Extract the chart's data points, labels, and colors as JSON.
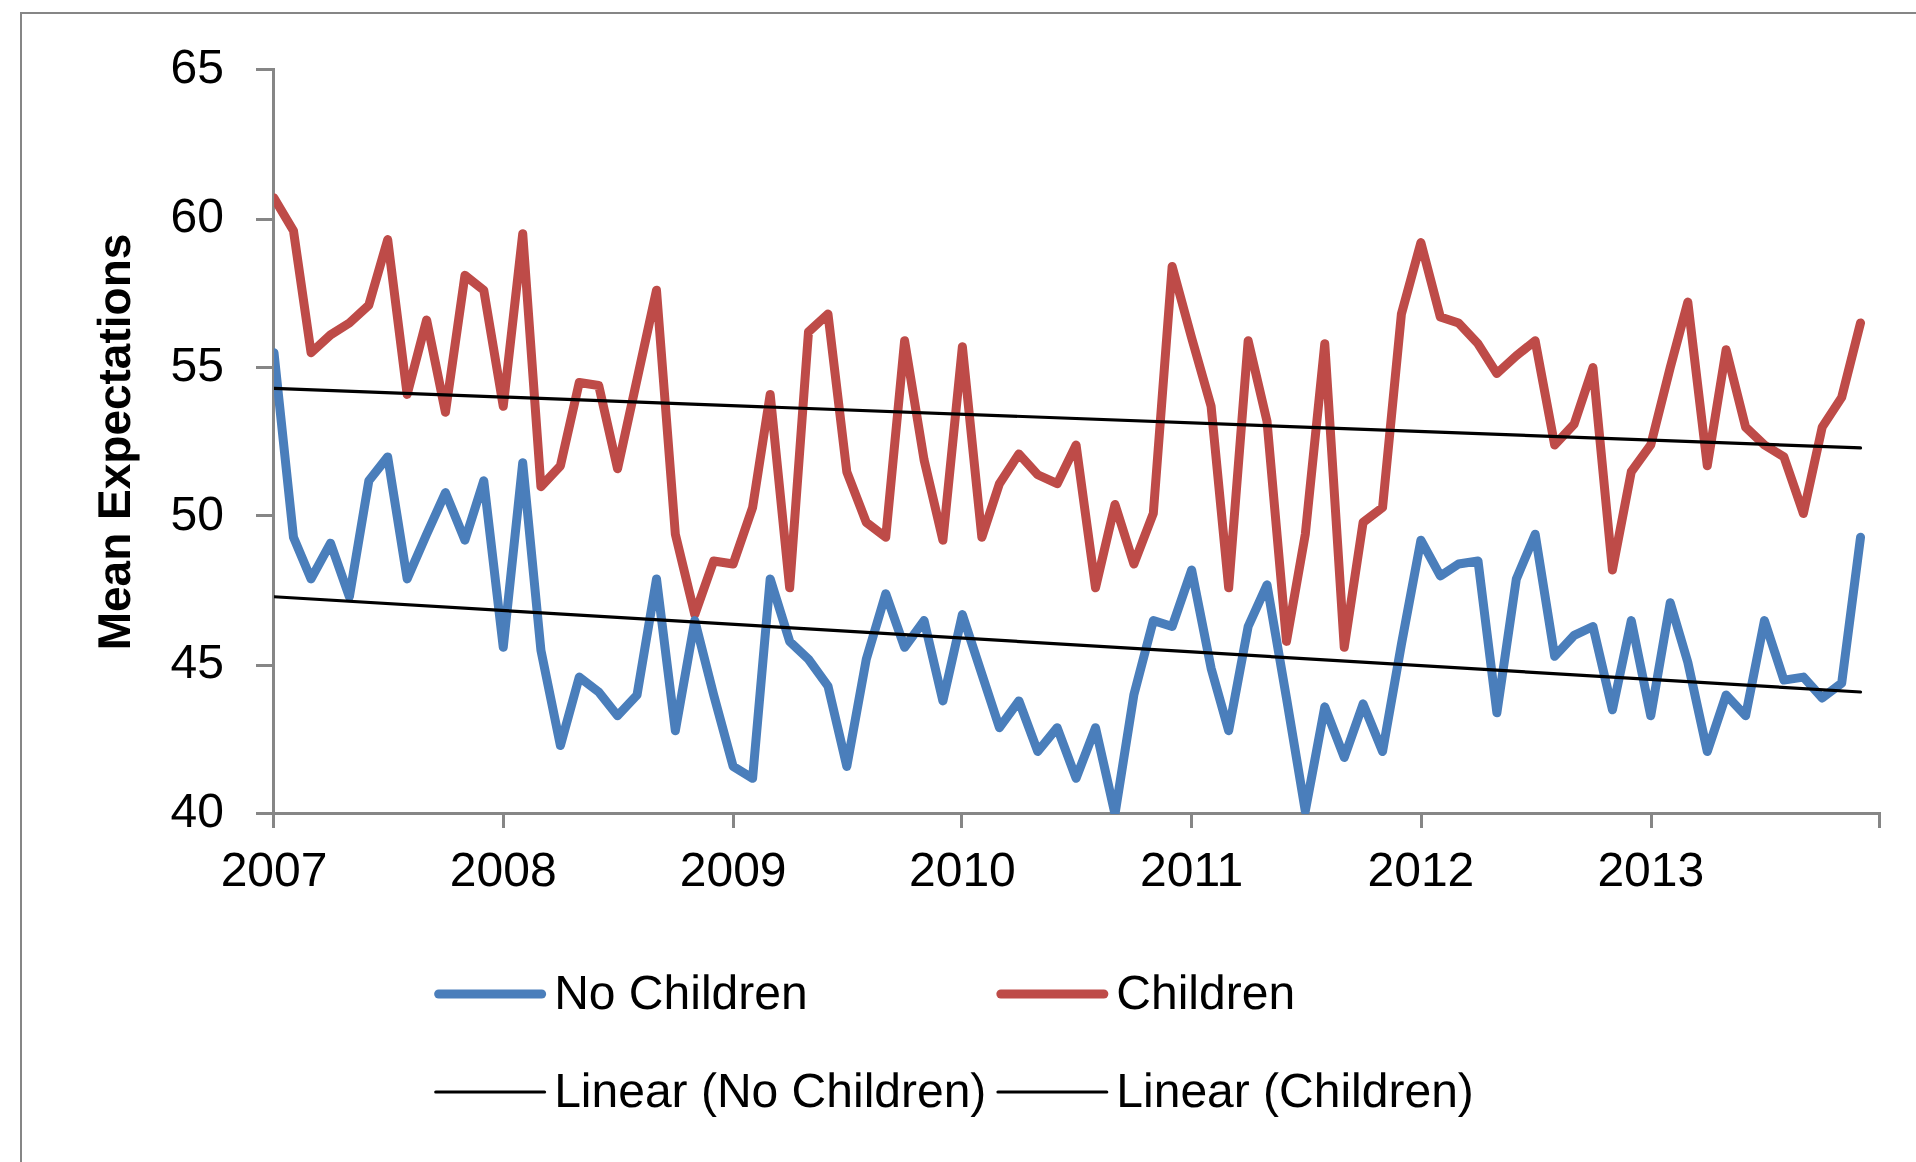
{
  "chart_data": {
    "type": "line",
    "ylabel": "Mean Expectations",
    "x": [
      "2007-01",
      "2007-02",
      "2007-03",
      "2007-04",
      "2007-05",
      "2007-06",
      "2007-07",
      "2007-08",
      "2007-09",
      "2007-10",
      "2007-11",
      "2007-12",
      "2008-01",
      "2008-02",
      "2008-03",
      "2008-04",
      "2008-05",
      "2008-06",
      "2008-07",
      "2008-08",
      "2008-09",
      "2008-10",
      "2008-11",
      "2008-12",
      "2009-01",
      "2009-02",
      "2009-03",
      "2009-04",
      "2009-05",
      "2009-06",
      "2009-07",
      "2009-08",
      "2009-09",
      "2009-10",
      "2009-11",
      "2009-12",
      "2010-01",
      "2010-02",
      "2010-03",
      "2010-04",
      "2010-05",
      "2010-06",
      "2010-07",
      "2010-08",
      "2010-09",
      "2010-10",
      "2010-11",
      "2010-12",
      "2011-01",
      "2011-02",
      "2011-03",
      "2011-04",
      "2011-05",
      "2011-06",
      "2011-07",
      "2011-08",
      "2011-09",
      "2011-10",
      "2011-11",
      "2011-12",
      "2012-01",
      "2012-02",
      "2012-03",
      "2012-04",
      "2012-05",
      "2012-06",
      "2012-07",
      "2012-08",
      "2012-09",
      "2012-10",
      "2012-11",
      "2012-12",
      "2013-01",
      "2013-02",
      "2013-03",
      "2013-04",
      "2013-05",
      "2013-06",
      "2013-07",
      "2013-08",
      "2013-09",
      "2013-10",
      "2013-11",
      "2013-12"
    ],
    "series": [
      {
        "name": "No Children",
        "color": "#4a7ebb",
        "values": [
          55.5,
          49.3,
          47.9,
          49.1,
          47.3,
          51.2,
          52.0,
          47.9,
          49.4,
          50.8,
          49.2,
          51.2,
          45.6,
          51.8,
          45.5,
          42.3,
          44.6,
          44.1,
          43.3,
          44.0,
          47.9,
          42.8,
          46.5,
          44.0,
          41.6,
          41.2,
          47.9,
          45.8,
          45.2,
          44.3,
          41.6,
          45.2,
          47.4,
          45.6,
          46.5,
          43.8,
          46.7,
          44.7,
          42.9,
          43.8,
          42.1,
          42.9,
          41.2,
          42.9,
          40.0,
          44.0,
          46.5,
          46.3,
          48.2,
          44.9,
          42.8,
          46.3,
          47.7,
          43.9,
          40.1,
          43.6,
          41.9,
          43.7,
          42.1,
          45.7,
          49.2,
          48.0,
          48.4,
          48.5,
          43.4,
          47.9,
          49.4,
          45.3,
          46.0,
          46.3,
          43.5,
          46.5,
          43.3,
          47.1,
          45.1,
          42.1,
          44.0,
          43.3,
          46.5,
          44.5,
          44.6,
          43.9,
          44.4,
          49.3
        ]
      },
      {
        "name": "Children",
        "color": "#be4b48",
        "values": [
          60.7,
          59.6,
          55.5,
          56.1,
          56.5,
          57.1,
          59.3,
          54.1,
          56.6,
          53.5,
          58.1,
          57.6,
          53.7,
          59.5,
          51.0,
          51.7,
          54.5,
          54.4,
          51.6,
          54.6,
          57.6,
          49.4,
          46.7,
          48.5,
          48.4,
          50.3,
          54.1,
          47.6,
          56.2,
          56.8,
          51.5,
          49.8,
          49.3,
          55.9,
          51.9,
          49.2,
          55.7,
          49.3,
          51.1,
          52.1,
          51.4,
          51.1,
          52.4,
          47.6,
          50.4,
          48.4,
          50.1,
          58.4,
          56.0,
          53.7,
          47.6,
          55.9,
          53.2,
          45.8,
          49.4,
          55.8,
          45.6,
          49.8,
          50.3,
          56.8,
          59.2,
          56.7,
          56.5,
          55.8,
          54.8,
          55.4,
          55.9,
          52.4,
          53.1,
          55.0,
          48.2,
          51.5,
          52.4,
          55.0,
          57.2,
          51.7,
          55.6,
          53.0,
          52.4,
          52.0,
          50.1,
          53.0,
          54.0,
          56.5
        ]
      },
      {
        "name": "Linear (No Children)",
        "color": "#000000",
        "x": [
          "2007-01",
          "2013-12"
        ],
        "values": [
          47.3,
          44.1
        ]
      },
      {
        "name": "Linear (Children)",
        "color": "#000000",
        "x": [
          "2007-01",
          "2013-12"
        ],
        "values": [
          54.3,
          52.3
        ]
      }
    ],
    "xlim": [
      "2007-01",
      "2014-01"
    ],
    "xticks": [
      "2007",
      "2008",
      "2009",
      "2010",
      "2011",
      "2012",
      "2013",
      {
        "value": "2014",
        "label": null
      }
    ],
    "ylim": [
      40,
      65
    ],
    "yticks": [
      40,
      45,
      50,
      55,
      60,
      65
    ],
    "grid": false,
    "legend": "bottom",
    "marker": "none"
  }
}
